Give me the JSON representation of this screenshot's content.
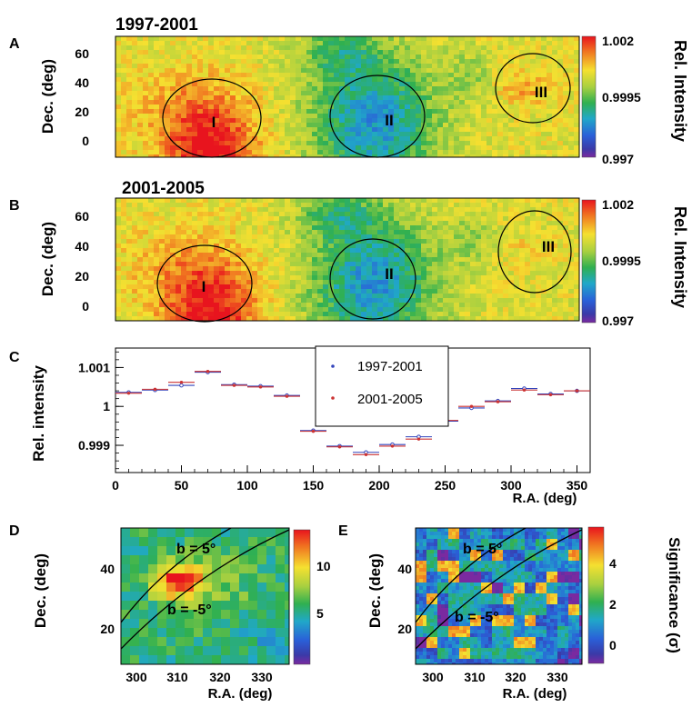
{
  "figure": {
    "panels": {
      "A": {
        "letter": "A",
        "period": "1997-2001",
        "ylabel": "Dec. (deg)",
        "yticks": [
          "60",
          "40",
          "20",
          "0"
        ],
        "colorbar": {
          "label": "Rel. Intensity",
          "ticks": [
            "1.002",
            "0.9995",
            "0.997"
          ]
        },
        "regions": [
          "I",
          "II",
          "III"
        ]
      },
      "B": {
        "letter": "B",
        "period": "2001-2005",
        "ylabel": "Dec. (deg)",
        "yticks": [
          "60",
          "40",
          "20",
          "0"
        ],
        "colorbar": {
          "label": "Rel. Intensity",
          "ticks": [
            "1.002",
            "0.9995",
            "0.997"
          ]
        },
        "regions": [
          "I",
          "II",
          "III"
        ]
      },
      "C": {
        "letter": "C"
      },
      "D": {
        "letter": "D",
        "ylabel": "Dec. (deg)",
        "xlabel": "R.A. (deg)",
        "xticks": [
          "300",
          "310",
          "320",
          "330"
        ],
        "yticks": [
          "40",
          "20"
        ],
        "colorbar_ticks": [
          "10",
          "5"
        ],
        "lines": [
          "b = 5°",
          "b = -5°"
        ]
      },
      "E": {
        "letter": "E",
        "ylabel": "Dec. (deg)",
        "xlabel": "R.A. (deg)",
        "xticks": [
          "300",
          "310",
          "320",
          "330"
        ],
        "yticks": [
          "40",
          "20"
        ],
        "colorbar_ticks": [
          "4",
          "2",
          "0"
        ],
        "colorbar_label": "Significance (σ)",
        "lines": [
          "b = 5°",
          "b = -5°"
        ]
      }
    }
  },
  "chart_data": [
    {
      "type": "line",
      "panel": "C",
      "title": "",
      "xlabel": "R.A. (deg)",
      "ylabel": "Rel. intensity",
      "xlim": [
        0,
        360
      ],
      "ylim": [
        0.9983,
        1.0015
      ],
      "xticks": [
        "0",
        "50",
        "100",
        "150",
        "200",
        "250",
        "300",
        "350"
      ],
      "yticks": [
        "1.001",
        "1",
        "0.999"
      ],
      "legend_position": "top-center",
      "x": [
        10,
        30,
        50,
        70,
        90,
        110,
        130,
        150,
        170,
        190,
        210,
        230,
        250,
        270,
        290,
        310,
        330,
        350
      ],
      "series": [
        {
          "name": "1997-2001",
          "color": "#3344bb",
          "values": [
            1.00036,
            1.00042,
            1.00054,
            1.00088,
            1.00056,
            1.00052,
            1.00028,
            0.99938,
            0.99898,
            0.99882,
            0.99902,
            0.99922,
            0.99962,
            0.99996,
            1.00014,
            1.00046,
            1.00032,
            1.0004
          ]
        },
        {
          "name": "2001-2005",
          "color": "#cc3333",
          "values": [
            1.00034,
            1.00044,
            1.00062,
            1.0009,
            1.00054,
            1.0005,
            1.00026,
            0.99936,
            0.99896,
            0.99876,
            0.99898,
            0.99916,
            0.99964,
            1.0,
            1.00012,
            1.00042,
            1.0003,
            1.0004
          ]
        }
      ]
    },
    {
      "type": "heatmap",
      "panel": "A",
      "title": "1997-2001",
      "xlabel": "R.A. (deg)",
      "ylabel": "Dec. (deg)",
      "value_range": [
        0.997,
        1.002
      ],
      "ylim": [
        -10,
        70
      ],
      "colorbar_ticks": [
        1.002,
        0.9995,
        0.997
      ]
    },
    {
      "type": "heatmap",
      "panel": "B",
      "title": "2001-2005",
      "xlabel": "R.A. (deg)",
      "ylabel": "Dec. (deg)",
      "value_range": [
        0.997,
        1.002
      ],
      "ylim": [
        -10,
        70
      ],
      "colorbar_ticks": [
        1.002,
        0.9995,
        0.997
      ]
    },
    {
      "type": "heatmap",
      "panel": "D",
      "xlabel": "R.A. (deg)",
      "ylabel": "Dec. (deg)",
      "xlim": [
        295,
        335
      ],
      "ylim": [
        10,
        50
      ],
      "colorbar_ticks": [
        10,
        5
      ]
    },
    {
      "type": "heatmap",
      "panel": "E",
      "xlabel": "R.A. (deg)",
      "ylabel": "Dec. (deg)",
      "xlim": [
        295,
        335
      ],
      "ylim": [
        10,
        50
      ],
      "colorbar_label": "Significance (σ)",
      "colorbar_ticks": [
        4,
        2,
        0
      ]
    }
  ]
}
